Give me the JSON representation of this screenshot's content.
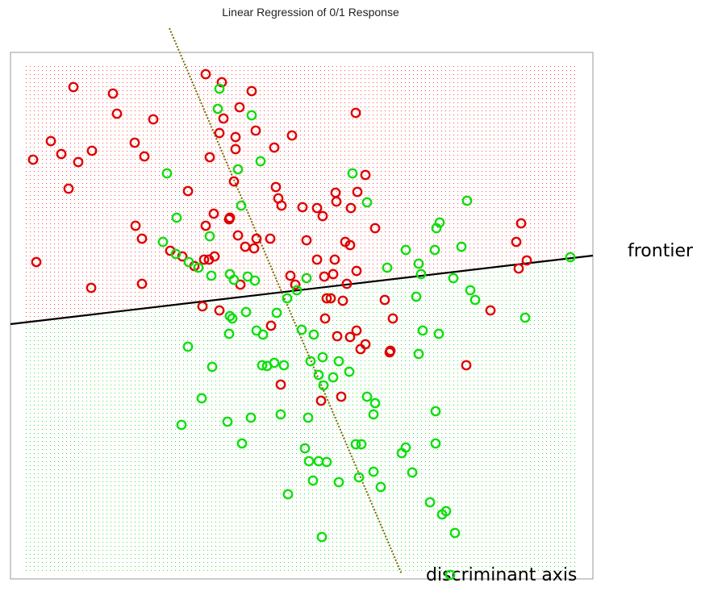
{
  "chart_data": {
    "type": "scatter",
    "title": "Linear Regression of 0/1 Response",
    "xlim": [
      0,
      722
    ],
    "ylim": [
      0,
      653
    ],
    "series": [
      {
        "color": "#e00000",
        "x": [
          242,
          262,
          299,
          78,
          127,
          132,
          177,
          284,
          264,
          259,
          279,
          304,
          349,
          428,
          50,
          63,
          101,
          84,
          28,
          154,
          166,
          247,
          279,
          327,
          72,
          220,
          277,
          329,
          332,
          336,
          362,
          380,
          387,
          403,
          404,
          422,
          430,
          440,
          252,
          272,
          271,
          242,
          155,
          163,
          282,
          305,
          291,
          302,
          322,
          367,
          452,
          415,
          421,
          633,
          627,
          640,
          630,
          32,
          100,
          163,
          198,
          213,
          228,
          240,
          246,
          253,
          285,
          347,
          353,
          380,
          402,
          389,
          400,
          417,
          429,
          397,
          412,
          392,
          464,
          474,
          595,
          238,
          259,
          323,
          390,
          405,
          421,
          429,
          434,
          440,
          471,
          470,
          565,
          335,
          385,
          410
        ],
        "values": [
          626,
          616,
          605,
          610,
          602,
          577,
          570,
          585,
          571,
          553,
          548,
          556,
          550,
          578,
          543,
          527,
          531,
          517,
          520,
          541,
          524,
          523,
          533,
          535,
          484,
          481,
          493,
          486,
          472,
          463,
          461,
          460,
          450,
          479,
          468,
          460,
          480,
          501,
          453,
          448,
          446,
          438,
          438,
          422,
          426,
          422,
          412,
          410,
          422,
          420,
          435,
          418,
          414,
          441,
          418,
          395,
          385,
          393,
          361,
          366,
          407,
          400,
          388,
          396,
          396,
          400,
          365,
          376,
          365,
          396,
          396,
          375,
          378,
          366,
          382,
          348,
          345,
          348,
          346,
          323,
          333,
          338,
          333,
          314,
          323,
          301,
          300,
          308,
          285,
          291,
          283,
          281,
          265,
          241,
          221,
          226
        ]
      },
      {
        "color": "#10dd10",
        "x": [
          259,
          299,
          257,
          194,
          282,
          310,
          424,
          442,
          206,
          247,
          189,
          205,
          221,
          233,
          249,
          272,
          277,
          294,
          303,
          286,
          367,
          355,
          343,
          330,
          292,
          272,
          275,
          271,
          305,
          313,
          327,
          312,
          318,
          339,
          372,
          387,
          361,
          376,
          407,
          420,
          400,
          382,
          388,
          250,
          220,
          237,
          212,
          269,
          298,
          335,
          369,
          287,
          467,
          490,
          506,
          509,
          526,
          528,
          532,
          559,
          566,
          549,
          570,
          576,
          503,
          511,
          531,
          506,
          638,
          694,
          442,
          452,
          450,
          527,
          365,
          370,
          382,
          392,
          375,
          428,
          435,
          490,
          485,
          450,
          432,
          407,
          459,
          498,
          527,
          344,
          520,
          535,
          540,
          551,
          386,
          545
        ],
        "values": [
          608,
          575,
          583,
          503,
          508,
          518,
          503,
          467,
          448,
          425,
          418,
          403,
          393,
          386,
          376,
          378,
          371,
          375,
          370,
          463,
          373,
          358,
          348,
          330,
          331,
          326,
          323,
          304,
          308,
          303,
          268,
          265,
          264,
          265,
          270,
          275,
          309,
          303,
          270,
          257,
          250,
          253,
          240,
          263,
          288,
          224,
          191,
          195,
          200,
          204,
          200,
          168,
          386,
          408,
          391,
          378,
          408,
          435,
          442,
          412,
          469,
          373,
          358,
          346,
          350,
          308,
          304,
          279,
          324,
          399,
          226,
          218,
          204,
          208,
          162,
          146,
          146,
          145,
          122,
          167,
          167,
          163,
          156,
          133,
          126,
          120,
          114,
          132,
          168,
          105,
          95,
          80,
          84,
          57,
          52,
          5
        ]
      }
    ],
    "lines": [
      {
        "type": "line",
        "color": "#000000",
        "style": "solid",
        "x": [
          0,
          722
        ],
        "values": [
          316,
          401
        ]
      },
      {
        "type": "line",
        "color": "#7a6a00",
        "style": "dotted",
        "x": [
          197,
          485
        ],
        "values": [
          683,
          6
        ]
      }
    ],
    "annotations": [
      {
        "text": "frontier"
      },
      {
        "text": "discriminant axis"
      }
    ]
  }
}
